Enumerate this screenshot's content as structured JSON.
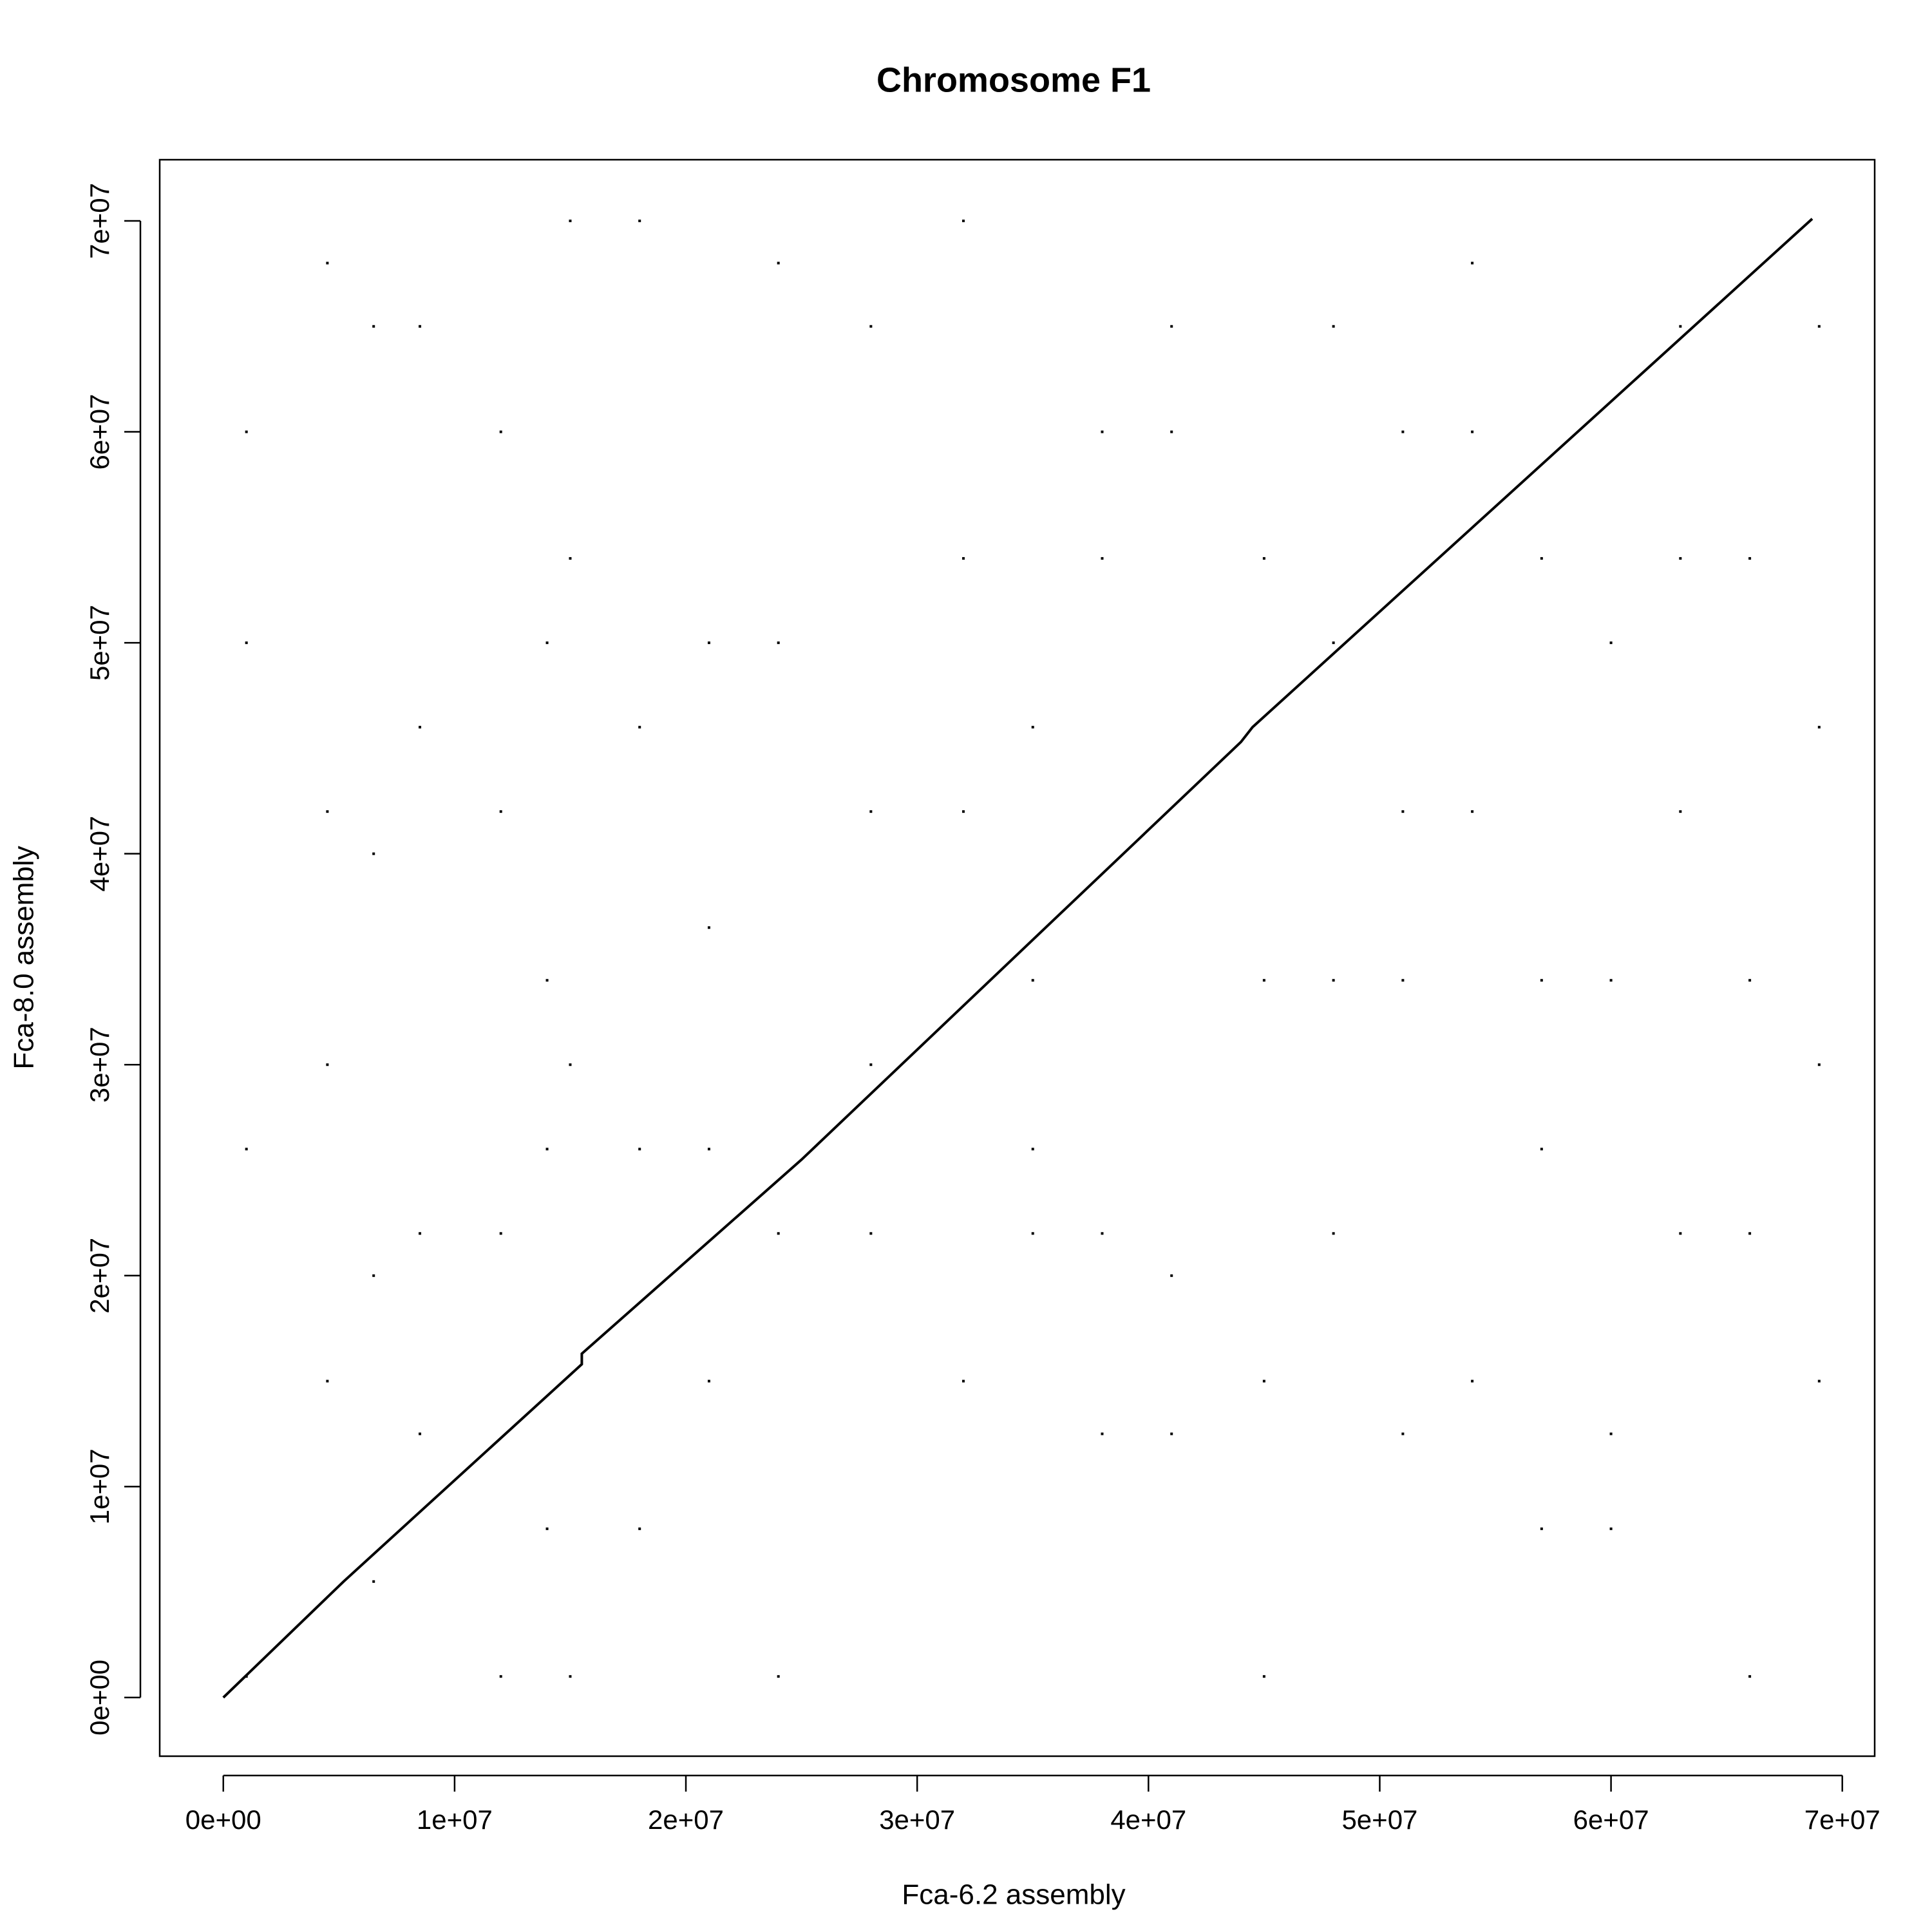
{
  "chart_data": {
    "type": "scatter",
    "title": "Chromosome F1",
    "x_label": "Fca-6.2 assembly",
    "y_label": "Fca-8.0 assembly",
    "xlim": [
      -2750000,
      71400000
    ],
    "ylim": [
      -2780000,
      72900000
    ],
    "xticks": [
      {
        "value": 0,
        "label": "0e+00"
      },
      {
        "value": 10000000,
        "label": "1e+07"
      },
      {
        "value": 20000000,
        "label": "2e+07"
      },
      {
        "value": 30000000,
        "label": "3e+07"
      },
      {
        "value": 40000000,
        "label": "4e+07"
      },
      {
        "value": 50000000,
        "label": "5e+07"
      },
      {
        "value": 60000000,
        "label": "6e+07"
      },
      {
        "value": 70000000,
        "label": "7e+07"
      }
    ],
    "yticks": [
      {
        "value": 0,
        "label": "0e+00"
      },
      {
        "value": 10000000,
        "label": "1e+07"
      },
      {
        "value": 20000000,
        "label": "2e+07"
      },
      {
        "value": 30000000,
        "label": "3e+07"
      },
      {
        "value": 40000000,
        "label": "4e+07"
      },
      {
        "value": 50000000,
        "label": "5e+07"
      },
      {
        "value": 60000000,
        "label": "6e+07"
      },
      {
        "value": 70000000,
        "label": "7e+07"
      }
    ],
    "color": "#000000",
    "series": [
      {
        "style": "line",
        "x": [
          0,
          5200000.0,
          15500000.0,
          15500000.0,
          25000000.0,
          44000000.0,
          44500000.0,
          68700000.0
        ],
        "values": [
          0,
          5500000.0,
          15800000.0,
          16300000.0,
          25500000.0,
          45300000.0,
          46000000.0,
          70100000.0
        ]
      },
      {
        "style": "points",
        "x": [
          1000000.0,
          4500000.0,
          6500000.0,
          8500000.0,
          12000000.0,
          14000000.0,
          15000000.0,
          18000000.0,
          21000000.0,
          24000000.0,
          28000000.0,
          32000000.0,
          35000000.0,
          38000000.0,
          41000000.0,
          45000000.0,
          48000000.0,
          51000000.0,
          54000000.0,
          57000000.0,
          60000000.0,
          63000000.0,
          66000000.0,
          69000000.0,
          1000000.0,
          4500000.0,
          6500000.0,
          8500000.0,
          12000000.0,
          14000000.0,
          15000000.0,
          18000000.0,
          21000000.0,
          24000000.0,
          28000000.0,
          32000000.0,
          35000000.0,
          38000000.0,
          41000000.0,
          45000000.0,
          48000000.0,
          51000000.0,
          54000000.0,
          57000000.0,
          60000000.0,
          63000000.0,
          66000000.0,
          69000000.0,
          1000000.0,
          4500000.0,
          6500000.0,
          8500000.0,
          12000000.0,
          14000000.0,
          15000000.0,
          18000000.0,
          21000000.0,
          24000000.0,
          28000000.0,
          32000000.0,
          35000000.0,
          38000000.0,
          41000000.0,
          45000000.0,
          48000000.0,
          51000000.0,
          54000000.0,
          57000000.0,
          60000000.0,
          63000000.0,
          66000000.0,
          69000000.0,
          1000000.0,
          4500000.0,
          6500000.0,
          8500000.0,
          12000000.0,
          14000000.0,
          15000000.0,
          18000000.0,
          21000000.0,
          24000000.0,
          28000000.0,
          32000000.0,
          35000000.0,
          38000000.0,
          41000000.0,
          45000000.0,
          48000000.0,
          51000000.0,
          54000000.0,
          57000000.0,
          60000000.0,
          63000000.0,
          66000000.0,
          69000000.0
        ],
        "values": [
          1000000.0,
          15000000.0,
          5500000.0,
          22000000.0,
          60000000.0,
          50000000.0,
          30000000.0,
          46000000.0,
          36500000.0,
          22000000.0,
          65000000.0,
          54000000.0,
          22000000.0,
          22000000.0,
          12500000.0,
          34000000.0,
          50000000.0,
          60000000.0,
          42000000.0,
          26000000.0,
          8000000.0,
          65000000.0,
          1000000.0,
          46000000.0,
          26000000.0,
          68000000.0,
          40000000.0,
          12500000.0,
          1000000.0,
          34000000.0,
          70000000.0,
          8000000.0,
          26000000.0,
          50000000.0,
          30000000.0,
          15000000.0,
          46000000.0,
          60000000.0,
          20000000.0,
          54000000.0,
          22000000.0,
          12500000.0,
          68000000.0,
          34000000.0,
          50000000.0,
          22000000.0,
          54000000.0,
          65000000.0,
          50000000.0,
          30000000.0,
          65000000.0,
          46000000.0,
          22000000.0,
          8000000.0,
          54000000.0,
          70000000.0,
          50000000.0,
          1000000.0,
          22000000.0,
          42000000.0,
          26000000.0,
          54000000.0,
          60000000.0,
          15000000.0,
          65000000.0,
          34000000.0,
          15000000.0,
          54000000.0,
          34000000.0,
          42000000.0,
          22000000.0,
          30000000.0,
          60000000.0,
          42000000.0,
          20000000.0,
          65000000.0,
          42000000.0,
          26000000.0,
          1000000.0,
          26000000.0,
          15000000.0,
          68000000.0,
          42000000.0,
          70000000.0,
          34000000.0,
          12500000.0,
          65000000.0,
          1000000.0,
          34000000.0,
          42000000.0,
          60000000.0,
          8000000.0,
          12500000.0,
          54000000.0,
          34000000.0,
          15000000.0
        ]
      }
    ]
  }
}
